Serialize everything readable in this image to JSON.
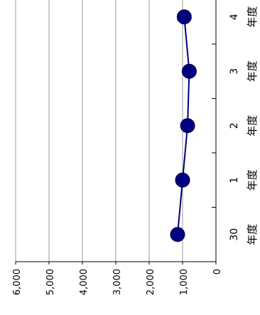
{
  "chart_data": {
    "type": "line",
    "orientation": "rotated-90-clockwise",
    "title": "",
    "xlabel": "",
    "ylabel": "",
    "categories": [
      "30\n年度",
      "1\n年度",
      "2\n年度",
      "3\n年度",
      "4\n年度"
    ],
    "category_labels": [
      {
        "num": "30",
        "suffix": "年度"
      },
      {
        "num": "1",
        "suffix": "年度"
      },
      {
        "num": "2",
        "suffix": "年度"
      },
      {
        "num": "3",
        "suffix": "年度"
      },
      {
        "num": "4",
        "suffix": "年度"
      }
    ],
    "series": [
      {
        "values": [
          1150,
          1000,
          850,
          800,
          950
        ],
        "color": "#000080"
      }
    ],
    "yticks": [
      "6,000",
      "5,000",
      "4,000",
      "3,000",
      "2,000",
      "1,000",
      "0"
    ],
    "ylim": [
      0,
      6000
    ],
    "grid": true,
    "legend": "none"
  }
}
